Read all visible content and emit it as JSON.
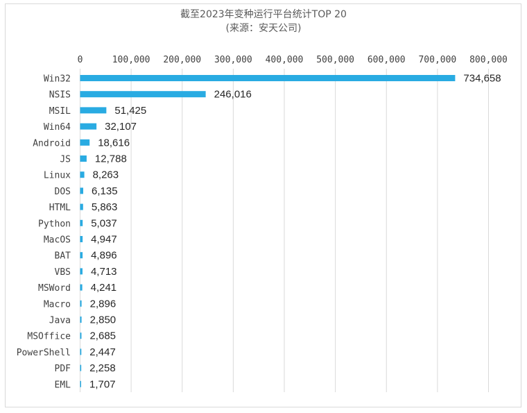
{
  "chart_data": {
    "type": "bar",
    "orientation": "horizontal",
    "title": "截至2023年变种运行平台统计TOP 20",
    "subtitle": "(来源：安天公司)",
    "xlim": [
      0,
      800000
    ],
    "x_ticks": [
      0,
      100000,
      200000,
      300000,
      400000,
      500000,
      600000,
      700000,
      800000
    ],
    "x_tick_labels": [
      "0",
      "100,000",
      "200,000",
      "300,000",
      "400,000",
      "500,000",
      "600,000",
      "700,000",
      "800,000"
    ],
    "x_axis_position": "top",
    "grid": true,
    "bar_color": "#29abe2",
    "categories": [
      "Win32",
      "NSIS",
      "MSIL",
      "Win64",
      "Android",
      "JS",
      "Linux",
      "DOS",
      "HTML",
      "Python",
      "MacOS",
      "BAT",
      "VBS",
      "MSWord",
      "Macro",
      "Java",
      "MSOffice",
      "PowerShell",
      "PDF",
      "EML"
    ],
    "values": [
      734658,
      246016,
      51425,
      32107,
      18616,
      12788,
      8263,
      6135,
      5863,
      5037,
      4947,
      4896,
      4713,
      4241,
      2896,
      2850,
      2685,
      2447,
      2258,
      1707
    ],
    "value_labels": [
      "734,658",
      "246,016",
      "51,425",
      "32,107",
      "18,616",
      "12,788",
      "8,263",
      "6,135",
      "5,863",
      "5,037",
      "4,947",
      "4,896",
      "4,713",
      "4,241",
      "2,896",
      "2,850",
      "2,685",
      "2,447",
      "2,258",
      "1,707"
    ]
  }
}
